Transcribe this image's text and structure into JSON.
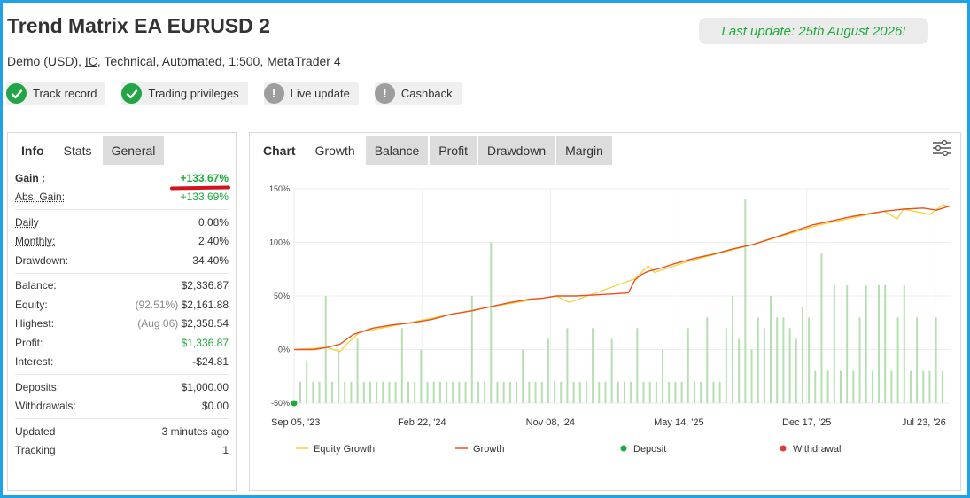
{
  "header": {
    "title": "Trend Matrix EA EURUSD 2",
    "subtitle_prefix": "Demo (USD), ",
    "subtitle_broker": "IC",
    "subtitle_suffix": ", Technical, Automated, 1:500, MetaTrader 4",
    "last_update": "Last update: 25th August 2026!"
  },
  "badges": [
    {
      "label": "Track record",
      "status": "verified"
    },
    {
      "label": "Trading privileges",
      "status": "verified"
    },
    {
      "label": "Live update",
      "status": "warning"
    },
    {
      "label": "Cashback",
      "status": "warning"
    }
  ],
  "left_tabs": [
    "Info",
    "Stats",
    "General"
  ],
  "stats": {
    "gain": {
      "label": "Gain :",
      "value": "+133.67%"
    },
    "abs_gain": {
      "label": "Abs. Gain:",
      "value": "+133.69%"
    },
    "daily": {
      "label": "Daily",
      "value": "0.08%"
    },
    "monthly": {
      "label": "Monthly:",
      "value": "2.40%"
    },
    "drawdown": {
      "label": "Drawdown:",
      "value": "34.40%"
    },
    "balance": {
      "label": "Balance:",
      "value": "$2,336.87"
    },
    "equity": {
      "label": "Equity:",
      "pct": "(92.51%)",
      "value": "$2,161.88"
    },
    "highest": {
      "label": "Highest:",
      "date": "(Aug 06)",
      "value": "$2,358.54"
    },
    "profit": {
      "label": "Profit:",
      "value": "$1,336.87"
    },
    "interest": {
      "label": "Interest:",
      "value": "-$24.81"
    },
    "deposits": {
      "label": "Deposits:",
      "value": "$1,000.00"
    },
    "withdrawals": {
      "label": "Withdrawals:",
      "value": "$0.00"
    },
    "updated": {
      "label": "Updated",
      "value": "3 minutes ago"
    },
    "tracking": {
      "label": "Tracking",
      "value": "1"
    }
  },
  "chart_tabs": [
    "Chart",
    "Growth",
    "Balance",
    "Profit",
    "Drawdown",
    "Margin"
  ],
  "colors": {
    "accent_green": "#1aab38",
    "growth_line": "#e8521e",
    "equity_line": "#f2d23c",
    "bars": "#b5dfb0",
    "deposit": "#1aab38",
    "withdrawal": "#e53935"
  },
  "chart_data": {
    "type": "line",
    "ylim": [
      -50,
      150
    ],
    "yticks": [
      "150%",
      "100%",
      "50%",
      "0%",
      "-50%"
    ],
    "ytick_values": [
      150,
      100,
      50,
      0,
      -50
    ],
    "xticks": [
      "Sep 05, '23",
      "Feb 22, '24",
      "Nov 08, '24",
      "May 14, '25",
      "Dec 17, '25",
      "Jul 23, '26"
    ],
    "x_range": [
      0,
      100
    ],
    "xtick_positions": [
      0,
      19.5,
      39.1,
      58.7,
      78.2,
      97.8
    ],
    "series": [
      {
        "name": "Growth",
        "x": [
          0,
          3,
          5,
          7,
          9,
          10,
          12,
          15,
          18,
          21,
          24,
          27,
          30,
          33,
          36,
          38,
          40,
          43,
          46,
          49,
          51,
          52,
          53,
          54,
          56,
          58,
          61,
          64,
          67,
          70,
          73,
          76,
          79,
          82,
          85,
          88,
          90,
          93,
          96,
          98,
          100
        ],
        "y": [
          0,
          0,
          2,
          5,
          14,
          16,
          20,
          23,
          25,
          28,
          33,
          36,
          40,
          44,
          47,
          48,
          50,
          50,
          51,
          52,
          53,
          65,
          70,
          73,
          76,
          80,
          85,
          89,
          94,
          98,
          104,
          110,
          116,
          120,
          124,
          127,
          129,
          131,
          132,
          130,
          134
        ]
      },
      {
        "name": "Equity Growth",
        "x": [
          0,
          5,
          7,
          8,
          10,
          20,
          30,
          40,
          42,
          52,
          54,
          55,
          60,
          70,
          80,
          90,
          92,
          93,
          97,
          99,
          100
        ],
        "y": [
          0,
          2,
          -2,
          5,
          16,
          28,
          40,
          50,
          44,
          66,
          78,
          72,
          82,
          98,
          116,
          129,
          122,
          131,
          126,
          135,
          133
        ]
      }
    ],
    "bar_series": {
      "name": "Trades",
      "values": [
        -30,
        -10,
        -30,
        -30,
        50,
        -30,
        0,
        -30,
        -30,
        10,
        -30,
        -30,
        -30,
        -30,
        -30,
        -30,
        20,
        -30,
        -30,
        0,
        -30,
        -30,
        -30,
        -30,
        -30,
        -30,
        -30,
        50,
        -30,
        -30,
        100,
        -30,
        -30,
        -30,
        -30,
        0,
        -30,
        -30,
        -30,
        10,
        -30,
        -30,
        20,
        -30,
        -30,
        -30,
        20,
        -30,
        -30,
        10,
        -30,
        -30,
        -30,
        20,
        -30,
        -30,
        -30,
        0,
        -30,
        -30,
        -30,
        20,
        -30,
        -30,
        30,
        -30,
        -30,
        20,
        50,
        10,
        140,
        0,
        30,
        20,
        50,
        30,
        30,
        20,
        10,
        40,
        30,
        -20,
        90,
        -20,
        60,
        -20,
        60,
        -20,
        30,
        60,
        -20,
        60,
        60,
        -20,
        30,
        60,
        -20,
        30,
        -20,
        -20,
        30,
        -20
      ]
    },
    "legend": [
      "Equity Growth",
      "Growth",
      "Deposit",
      "Withdrawal"
    ],
    "legend_position": "bottom",
    "deposit_marker": {
      "x": 0,
      "y": -50
    }
  }
}
